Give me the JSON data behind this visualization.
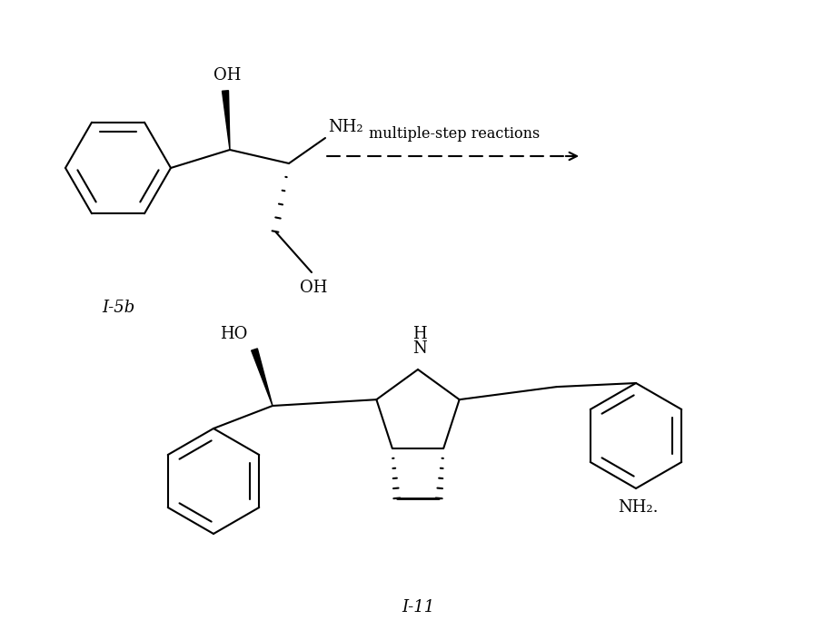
{
  "bg_color": "#ffffff",
  "line_color": "#000000",
  "line_width": 1.5,
  "fig_width": 8.96,
  "fig_height": 7.05,
  "label_i5b": "I-5b",
  "label_i11": "I-11",
  "reaction_text": "multiple-step reactions",
  "oh_label": "OH",
  "nh2_label": "NH₂",
  "ho_label": "HO",
  "nh2_bottom": "NH₂.",
  "font_size_group": 13,
  "font_size_compound": 13
}
